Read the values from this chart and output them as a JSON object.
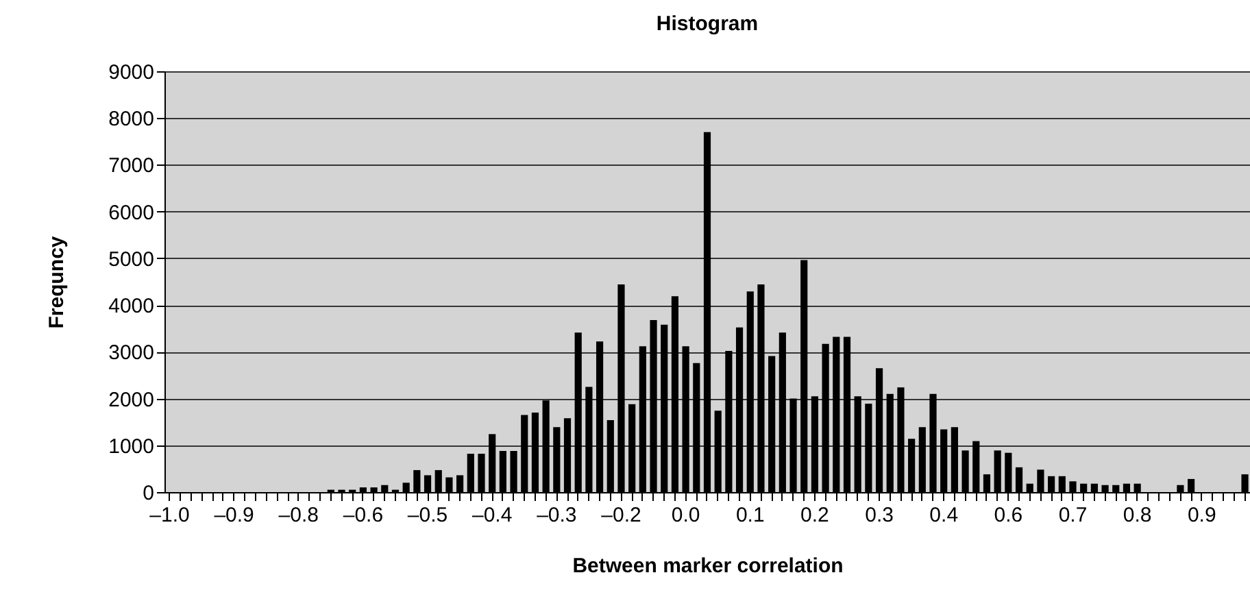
{
  "chart_data": {
    "type": "bar",
    "title": "Histogram",
    "xlabel": "Between marker correlation",
    "ylabel": "Frequncy",
    "categories": [
      "–1.0",
      null,
      null,
      null,
      null,
      null,
      "–0.9",
      null,
      null,
      null,
      null,
      null,
      "–0.8",
      null,
      null,
      null,
      null,
      null,
      "–0.6",
      null,
      null,
      null,
      null,
      null,
      "–0.5",
      null,
      null,
      null,
      null,
      null,
      "–0.4",
      null,
      null,
      null,
      null,
      null,
      "–0.3",
      null,
      null,
      null,
      null,
      null,
      "–0.2",
      null,
      null,
      null,
      null,
      null,
      "0.0",
      null,
      null,
      null,
      null,
      null,
      "0.1",
      null,
      null,
      null,
      null,
      null,
      "0.2",
      null,
      null,
      null,
      null,
      null,
      "0.3",
      null,
      null,
      null,
      null,
      null,
      "0.4",
      null,
      null,
      null,
      null,
      null,
      "0.6",
      null,
      null,
      null,
      null,
      null,
      "0.7",
      null,
      null,
      null,
      null,
      null,
      "0.8",
      null,
      null,
      null,
      null,
      null,
      "0.9",
      null,
      null,
      null,
      null
    ],
    "values": [
      0,
      0,
      0,
      0,
      0,
      0,
      0,
      0,
      0,
      0,
      0,
      0,
      0,
      0,
      0,
      50,
      50,
      50,
      100,
      100,
      150,
      50,
      200,
      470,
      360,
      470,
      315,
      360,
      820,
      820,
      1240,
      880,
      880,
      1650,
      1700,
      1960,
      1390,
      1580,
      3410,
      2250,
      3220,
      1540,
      4440,
      1880,
      3120,
      3680,
      3580,
      4190,
      3120,
      2760,
      7700,
      1740,
      3020,
      3520,
      4290,
      4440,
      2910,
      3410,
      2000,
      4960,
      2050,
      3170,
      3320,
      3320,
      2050,
      1890,
      2650,
      2100,
      2240,
      1140,
      1390,
      2100,
      1340,
      1390,
      890,
      1090,
      380,
      890,
      840,
      530,
      180,
      480,
      340,
      340,
      230,
      180,
      180,
      150,
      150,
      180,
      180,
      0,
      0,
      0,
      150,
      280,
      0,
      0,
      0,
      0,
      380
    ],
    "color": "#000000",
    "ylim": [
      0,
      9000
    ],
    "yticks": [
      0,
      1000,
      2000,
      3000,
      4000,
      5000,
      6000,
      7000,
      8000,
      9000
    ],
    "grid": "y"
  }
}
